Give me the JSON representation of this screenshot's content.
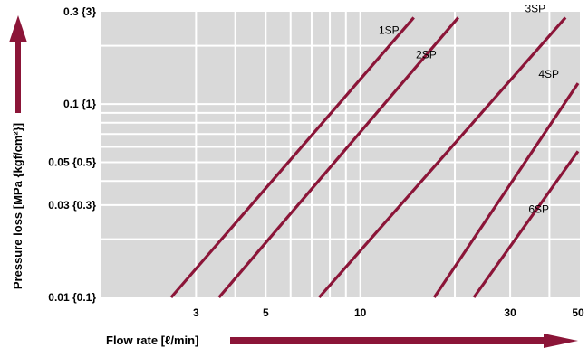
{
  "chart_data": {
    "type": "line",
    "title": "",
    "xlabel": "Flow rate [ℓ/min]",
    "ylabel": "Pressure loss [MPa {kgf/cm²}]",
    "x_scale": "log",
    "y_scale": "log",
    "xlim": [
      1.5,
      50
    ],
    "ylim": [
      0.01,
      0.3
    ],
    "x_ticks": [
      {
        "value": 3,
        "label": "3"
      },
      {
        "value": 5,
        "label": "5"
      },
      {
        "value": 10,
        "label": "10"
      },
      {
        "value": 30,
        "label": "30"
      },
      {
        "value": 50,
        "label": "50"
      }
    ],
    "y_ticks": [
      {
        "value": 0.01,
        "label": "0.01 {0.1}"
      },
      {
        "value": 0.03,
        "label": "0.03 {0.3}"
      },
      {
        "value": 0.05,
        "label": "0.05 {0.5}"
      },
      {
        "value": 0.1,
        "label": "0.1 {1}"
      },
      {
        "value": 0.3,
        "label": "0.3 {3}"
      }
    ],
    "x_gridlines": [
      3,
      4,
      5,
      6,
      7,
      8,
      9,
      10,
      20,
      30,
      40
    ],
    "y_gridlines": [
      0.02,
      0.03,
      0.04,
      0.05,
      0.06,
      0.07,
      0.08,
      0.09,
      0.1,
      0.2
    ],
    "grid": true,
    "colors": {
      "background": "#d9d9d9",
      "grid": "#ffffff",
      "series": "#8b1538",
      "arrow": "#8b1538"
    },
    "series": [
      {
        "name": "1SP",
        "x": [
          2.5,
          14.8
        ],
        "y": [
          0.01,
          0.28
        ]
      },
      {
        "name": "2SP",
        "x": [
          3.55,
          20.5
        ],
        "y": [
          0.01,
          0.28
        ]
      },
      {
        "name": "3SP",
        "x": [
          7.4,
          45
        ],
        "y": [
          0.01,
          0.28
        ]
      },
      {
        "name": "4SP",
        "x": [
          17.2,
          50
        ],
        "y": [
          0.01,
          0.128
        ]
      },
      {
        "name": "6SP",
        "x": [
          23.0,
          50
        ],
        "y": [
          0.01,
          0.057
        ]
      }
    ]
  }
}
